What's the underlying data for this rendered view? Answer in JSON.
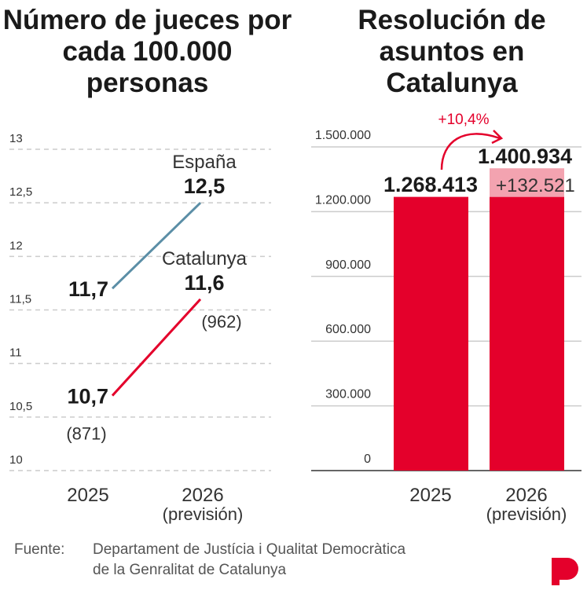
{
  "chart_data": [
    {
      "type": "line",
      "title": "Número de jueces por cada 100.000 personas",
      "categories": [
        "2025",
        "2026"
      ],
      "category_sublabels": [
        "",
        "(previsión)"
      ],
      "ylim": [
        10,
        13
      ],
      "yticks": [
        "10",
        "10,5",
        "11",
        "11,5",
        "12",
        "12,5",
        "13"
      ],
      "ytick_values": [
        10,
        10.5,
        11,
        11.5,
        12,
        12.5,
        13
      ],
      "grid": true,
      "series": [
        {
          "name": "España",
          "values": [
            11.7,
            12.5
          ],
          "labels": [
            "11,7",
            "12,5"
          ],
          "color": "#5b8ea6"
        },
        {
          "name": "Catalunya",
          "values": [
            10.7,
            11.6
          ],
          "labels": [
            "10,7",
            "11,6"
          ],
          "notes": [
            "(871)",
            "(962)"
          ],
          "color": "#e4002b"
        }
      ]
    },
    {
      "type": "bar",
      "title": "Resolución de asuntos en Catalunya",
      "categories": [
        "2025",
        "2026"
      ],
      "category_sublabels": [
        "",
        "(previsión)"
      ],
      "values": [
        1268413,
        1400934
      ],
      "value_labels": [
        "1.268.413",
        "1.400.934"
      ],
      "increase": 132521,
      "increase_label": "+132.521",
      "change_label": "+10,4%",
      "ylim": [
        0,
        1500000
      ],
      "yticks": [
        "0",
        "300.000",
        "600.000",
        "900.000",
        "1.200.000",
        "1.500.000"
      ],
      "ytick_values": [
        0,
        300000,
        600000,
        900000,
        1200000,
        1500000
      ],
      "grid": true,
      "colors": {
        "bar": "#e4002b",
        "increase": "#f3a3b0"
      }
    }
  ],
  "source": {
    "label": "Fuente:",
    "lines": [
      "Departament de Justícia i Qualitat Democràtica",
      "de la Genralitat de Catalunya"
    ]
  },
  "logo": {
    "text": "P",
    "color": "#e4002b"
  }
}
